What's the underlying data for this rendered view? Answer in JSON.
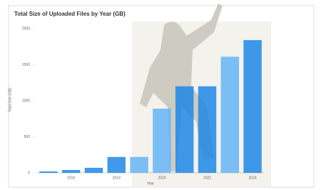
{
  "chart_data": {
    "type": "bar",
    "title": "Total Size of Uploaded Files by Year (GB)",
    "x_label": "Year",
    "y_label": "Total Size (GB)",
    "categories": [
      null,
      "2016",
      null,
      "2018",
      null,
      "2020",
      null,
      "2022",
      null,
      "2024"
    ],
    "values": [
      20,
      40,
      70,
      220,
      220,
      890,
      1200,
      1200,
      1610,
      1840
    ],
    "colors": [
      "#1e88e5",
      "#1e88e5",
      "#1e88e5",
      "#1e88e5",
      "#64b5f6",
      "#64b5f6",
      "#1e88e5",
      "#1e88e5",
      "#64b5f6",
      "#1e88e5"
    ],
    "ylim": [
      0,
      2000
    ],
    "yticks": [
      0,
      500,
      1000,
      1500,
      2000
    ]
  }
}
